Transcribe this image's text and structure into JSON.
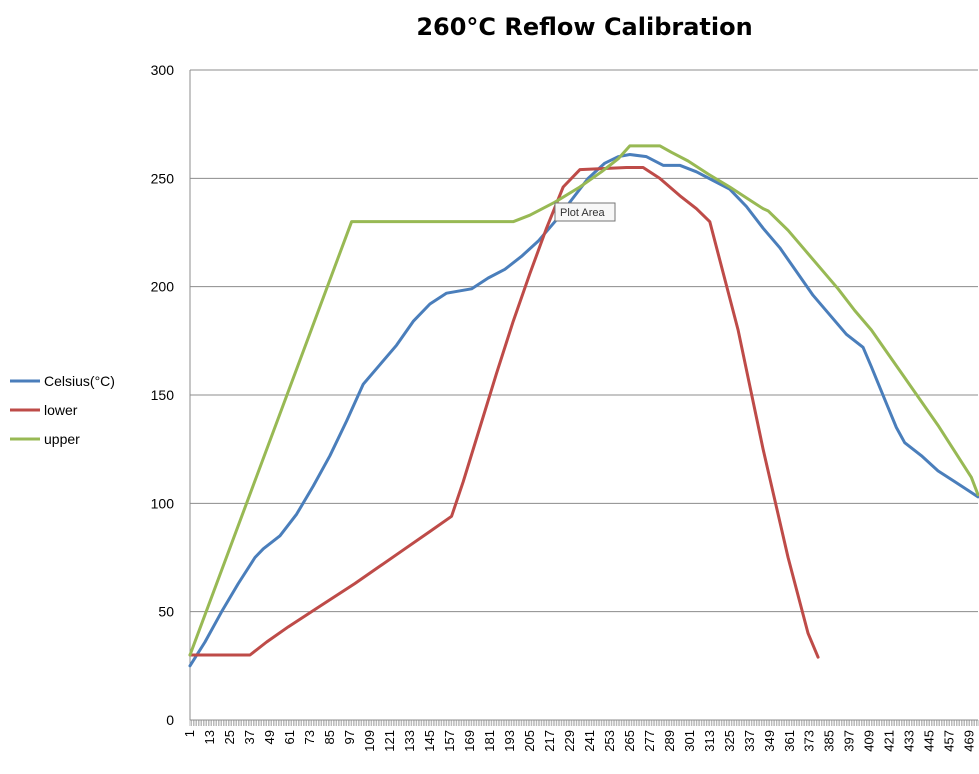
{
  "chart_data": {
    "type": "line",
    "title": "260°C Reflow Calibration",
    "xlabel": "",
    "ylabel": "",
    "ylim": [
      0,
      300
    ],
    "yticks": [
      0,
      50,
      100,
      150,
      200,
      250,
      300
    ],
    "xlim": [
      1,
      474
    ],
    "xtick_step": 12,
    "grid": "horizontal",
    "legend_position": "left",
    "series": [
      {
        "name": "Celsius(°C)",
        "color": "#4A7EBB",
        "points": [
          [
            1,
            25
          ],
          [
            10,
            36
          ],
          [
            20,
            50
          ],
          [
            30,
            63
          ],
          [
            40,
            75
          ],
          [
            45,
            79
          ],
          [
            55,
            85
          ],
          [
            65,
            95
          ],
          [
            75,
            108
          ],
          [
            85,
            122
          ],
          [
            95,
            138
          ],
          [
            105,
            155
          ],
          [
            115,
            164
          ],
          [
            125,
            173
          ],
          [
            135,
            184
          ],
          [
            145,
            192
          ],
          [
            155,
            197
          ],
          [
            170,
            199
          ],
          [
            180,
            204
          ],
          [
            190,
            208
          ],
          [
            200,
            214
          ],
          [
            210,
            221
          ],
          [
            220,
            230
          ],
          [
            230,
            240
          ],
          [
            240,
            250
          ],
          [
            250,
            257
          ],
          [
            258,
            260
          ],
          [
            265,
            261
          ],
          [
            275,
            260
          ],
          [
            285,
            256
          ],
          [
            295,
            256
          ],
          [
            305,
            253
          ],
          [
            315,
            249
          ],
          [
            325,
            245
          ],
          [
            335,
            237
          ],
          [
            345,
            227
          ],
          [
            355,
            218
          ],
          [
            365,
            207
          ],
          [
            375,
            196
          ],
          [
            385,
            187
          ],
          [
            395,
            178
          ],
          [
            405,
            172
          ],
          [
            410,
            163
          ],
          [
            418,
            148
          ],
          [
            425,
            135
          ],
          [
            430,
            128
          ],
          [
            440,
            122
          ],
          [
            450,
            115
          ],
          [
            460,
            110
          ],
          [
            470,
            105
          ],
          [
            474,
            103
          ]
        ]
      },
      {
        "name": "lower",
        "color": "#BE4B48",
        "points": [
          [
            1,
            30
          ],
          [
            37,
            30
          ],
          [
            47,
            36
          ],
          [
            60,
            43
          ],
          [
            80,
            53
          ],
          [
            100,
            63
          ],
          [
            115,
            71
          ],
          [
            130,
            79
          ],
          [
            145,
            87
          ],
          [
            158,
            94
          ],
          [
            165,
            110
          ],
          [
            175,
            135
          ],
          [
            185,
            160
          ],
          [
            195,
            184
          ],
          [
            205,
            206
          ],
          [
            215,
            227
          ],
          [
            225,
            246
          ],
          [
            235,
            254
          ],
          [
            263,
            255
          ],
          [
            273,
            255
          ],
          [
            283,
            250
          ],
          [
            295,
            242
          ],
          [
            305,
            236
          ],
          [
            313,
            230
          ],
          [
            330,
            180
          ],
          [
            345,
            125
          ],
          [
            360,
            75
          ],
          [
            372,
            40
          ],
          [
            378,
            29
          ]
        ]
      },
      {
        "name": "upper",
        "color": "#98B954",
        "points": [
          [
            1,
            30
          ],
          [
            98,
            230
          ],
          [
            195,
            230
          ],
          [
            205,
            233
          ],
          [
            220,
            239
          ],
          [
            235,
            246
          ],
          [
            248,
            253
          ],
          [
            258,
            259
          ],
          [
            265,
            265
          ],
          [
            283,
            265
          ],
          [
            290,
            262
          ],
          [
            300,
            258
          ],
          [
            312,
            252
          ],
          [
            325,
            246
          ],
          [
            335,
            241
          ],
          [
            345,
            236
          ],
          [
            348,
            235
          ],
          [
            360,
            226
          ],
          [
            370,
            217
          ],
          [
            380,
            208
          ],
          [
            390,
            199
          ],
          [
            400,
            189
          ],
          [
            410,
            180
          ],
          [
            420,
            169
          ],
          [
            430,
            158
          ],
          [
            440,
            147
          ],
          [
            450,
            136
          ],
          [
            460,
            124
          ],
          [
            470,
            112
          ],
          [
            474,
            104
          ]
        ]
      }
    ],
    "tooltip": "Plot Area"
  }
}
